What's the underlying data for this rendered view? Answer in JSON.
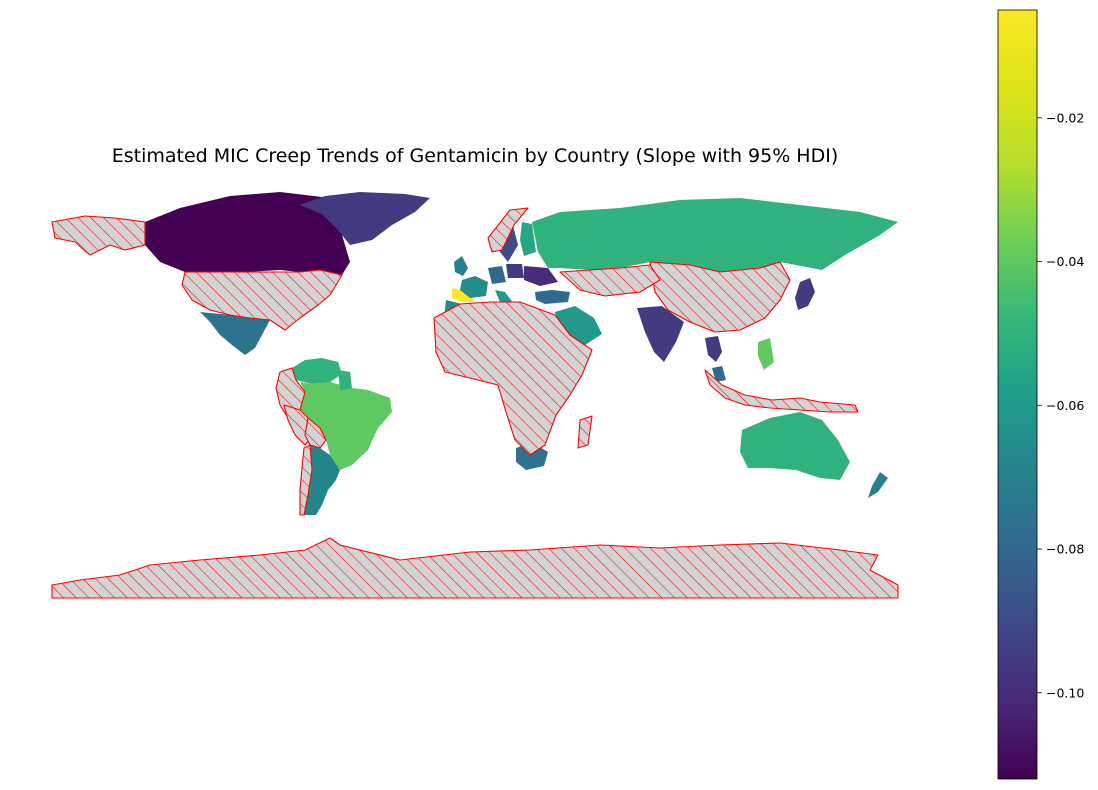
{
  "chart_data": {
    "type": "choropleth",
    "title": "Estimated MIC Creep Trends of Gentamicin by Country (Slope with 95% HDI)",
    "colormap": "viridis",
    "colorbar": {
      "vmin": -0.112,
      "vmax": -0.005,
      "ticks": [
        {
          "value": -0.02,
          "label": "−0.02"
        },
        {
          "value": -0.04,
          "label": "−0.04"
        },
        {
          "value": -0.06,
          "label": "−0.06"
        },
        {
          "value": -0.08,
          "label": "−0.08"
        },
        {
          "value": -0.1,
          "label": "−0.10"
        }
      ]
    },
    "no_data_style": {
      "fill": "#d3d3d3",
      "edge": "#ff0000",
      "hatch": "diagonal"
    },
    "regions": [
      {
        "name": "Canada",
        "value": -0.112
      },
      {
        "name": "Greenland",
        "value": -0.095
      },
      {
        "name": "Mexico",
        "value": -0.075
      },
      {
        "name": "Russia",
        "value": -0.05
      },
      {
        "name": "Brazil",
        "value": -0.04
      },
      {
        "name": "Argentina",
        "value": -0.068
      },
      {
        "name": "Venezuela",
        "value": -0.05
      },
      {
        "name": "Guyana",
        "value": -0.05
      },
      {
        "name": "Australia",
        "value": -0.05
      },
      {
        "name": "New Zealand",
        "value": -0.07
      },
      {
        "name": "India",
        "value": -0.095
      },
      {
        "name": "Japan",
        "value": -0.095
      },
      {
        "name": "Spain",
        "value": -0.005
      },
      {
        "name": "Philippines",
        "value": -0.04
      },
      {
        "name": "Thailand",
        "value": -0.095
      },
      {
        "name": "Malaysia",
        "value": -0.08
      },
      {
        "name": "Saudi Arabia",
        "value": -0.06
      },
      {
        "name": "Turkey",
        "value": -0.08
      },
      {
        "name": "South Africa",
        "value": -0.075
      },
      {
        "name": "Nigeria",
        "value": -0.07
      },
      {
        "name": "Morocco",
        "value": -0.065
      },
      {
        "name": "France",
        "value": -0.065
      },
      {
        "name": "Germany",
        "value": -0.08
      },
      {
        "name": "United Kingdom",
        "value": -0.07
      },
      {
        "name": "Italy",
        "value": -0.06
      },
      {
        "name": "Poland",
        "value": -0.095
      },
      {
        "name": "Ukraine",
        "value": -0.1
      },
      {
        "name": "Sweden",
        "value": -0.09
      },
      {
        "name": "Finland",
        "value": -0.055
      },
      {
        "name": "United States",
        "value": null
      },
      {
        "name": "China",
        "value": null
      },
      {
        "name": "Kazakhstan",
        "value": null
      },
      {
        "name": "Africa (most)",
        "value": null
      },
      {
        "name": "Antarctica",
        "value": null
      },
      {
        "name": "Alaska",
        "value": null
      },
      {
        "name": "Colombia",
        "value": null
      },
      {
        "name": "Peru",
        "value": null
      },
      {
        "name": "Bolivia",
        "value": null
      },
      {
        "name": "Chile",
        "value": null
      },
      {
        "name": "Indonesia",
        "value": null
      },
      {
        "name": "Madagascar",
        "value": null
      },
      {
        "name": "Norway",
        "value": null
      }
    ]
  }
}
